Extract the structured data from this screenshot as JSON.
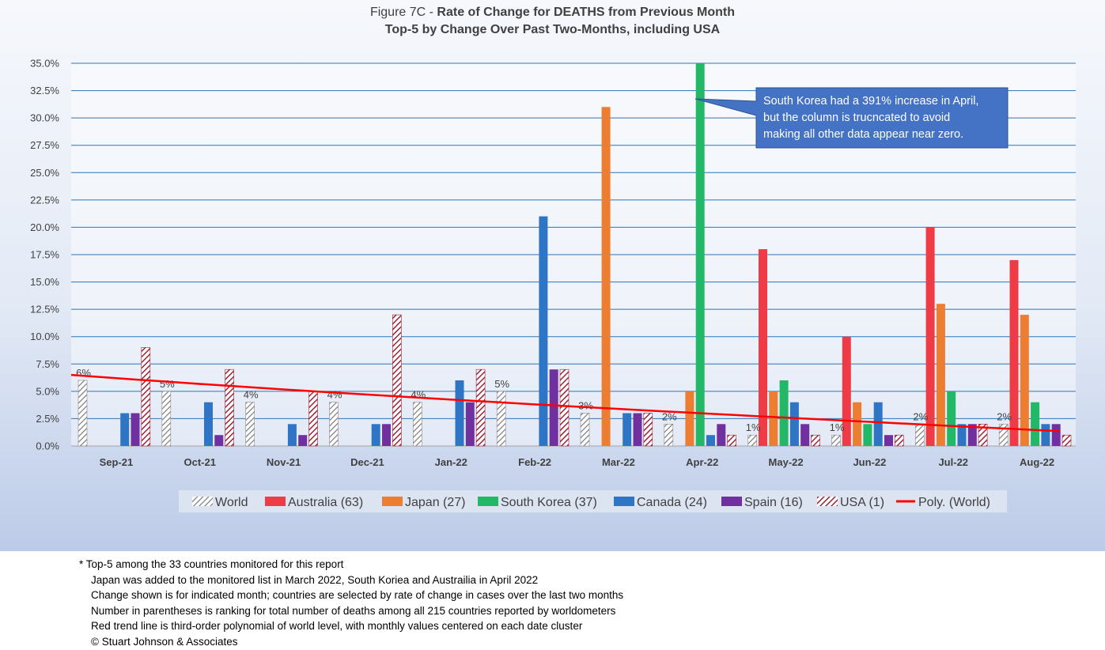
{
  "title": {
    "prefix": "Figure 7C - ",
    "bold": "Rate of Change for DEATHS from Previous Month",
    "line2": "Top-5 by Change Over Past Two-Months, including USA"
  },
  "chart_data": {
    "type": "bar",
    "categories": [
      "Sep-21",
      "Oct-21",
      "Nov-21",
      "Dec-21",
      "Jan-22",
      "Feb-22",
      "Mar-22",
      "Apr-22",
      "May-22",
      "Jun-22",
      "Jul-22",
      "Aug-22"
    ],
    "ylim": [
      0,
      35
    ],
    "yticks": [
      "0.0%",
      "2.5%",
      "5.0%",
      "7.5%",
      "10.0%",
      "12.5%",
      "15.0%",
      "17.5%",
      "20.0%",
      "22.5%",
      "25.0%",
      "27.5%",
      "30.0%",
      "32.5%",
      "35.0%"
    ],
    "grid": true,
    "legend_position": "bottom",
    "series": [
      {
        "name": "World",
        "color": "#8c8c8c",
        "pattern": "hatch-gray",
        "values": [
          6,
          5,
          4,
          4,
          4,
          5,
          3,
          2,
          1,
          1,
          2,
          2
        ]
      },
      {
        "name": "Australia (63)",
        "color": "#ee3b45",
        "values": [
          null,
          null,
          null,
          null,
          null,
          null,
          null,
          null,
          18,
          10,
          20,
          17
        ]
      },
      {
        "name": "Japan (27)",
        "color": "#ed7d31",
        "values": [
          null,
          null,
          null,
          null,
          null,
          null,
          31,
          5,
          5,
          4,
          13,
          12
        ]
      },
      {
        "name": "South Korea (37)",
        "color": "#22b868",
        "values": [
          null,
          null,
          null,
          null,
          null,
          null,
          null,
          35,
          6,
          2,
          5,
          4
        ]
      },
      {
        "name": "Canada (24)",
        "color": "#2e75c6",
        "values": [
          3,
          4,
          2,
          2,
          6,
          21,
          3,
          1,
          4,
          4,
          2,
          2
        ]
      },
      {
        "name": "Spain (16)",
        "color": "#7030a0",
        "values": [
          3,
          1,
          1,
          2,
          4,
          7,
          3,
          2,
          2,
          1,
          2,
          2
        ]
      },
      {
        "name": "USA (1)",
        "color": "#9b2335",
        "pattern": "hatch-red",
        "values": [
          9,
          7,
          5,
          12,
          7,
          7,
          3,
          1,
          1,
          1,
          2,
          1
        ]
      }
    ],
    "world_labels": [
      "6%",
      "5%",
      "4%",
      "4%",
      "4%",
      "5%",
      "3%",
      "2%",
      "1%",
      "1%",
      "2%",
      "2%"
    ],
    "trendline": {
      "name": "Poly. (World)",
      "color": "#ff0000",
      "start": 6.5,
      "end": 1.35
    },
    "annotation": "South Korea had a 391% increase in April, but the column is trucncated to avoid making all other data appear near zero.",
    "annotation_lines": [
      "South Korea had a 391% increase in April,",
      "but the column is trucncated to avoid",
      "making all other data appear near zero."
    ]
  },
  "notes": [
    "* Top-5 among the 33 countries monitored for this report",
    "Japan was added to the monitored list in March 2022, South Koriea and Austrailia  in April 2022",
    "Change shown is for indicated month; countries are selected by rate of change in cases over the last two months",
    "Number in parentheses is ranking for total number of deaths among all 215 countries reported by worldometers",
    "Red trend line is third-order polynomial of world level, with monthly values centered on each date cluster",
    "© Stuart Johnson & Associates"
  ]
}
